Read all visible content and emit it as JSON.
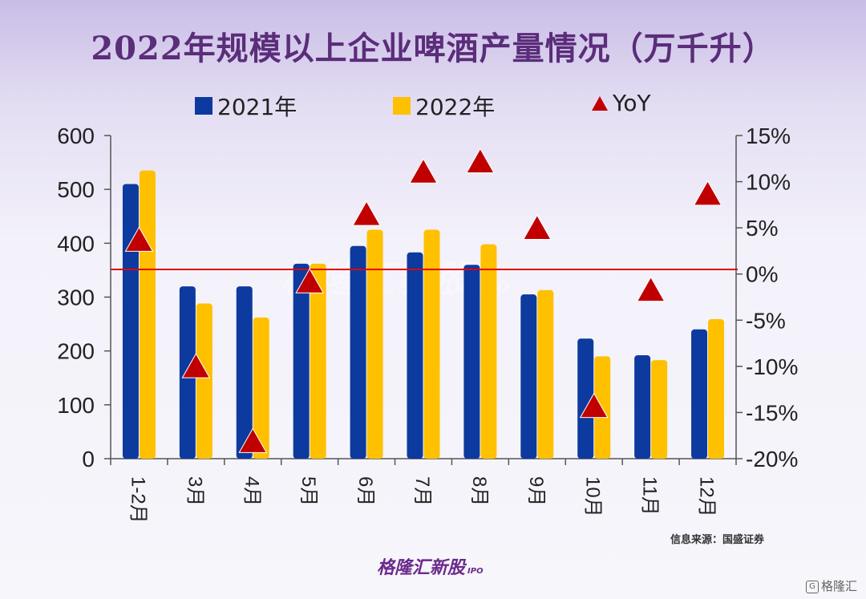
{
  "title": "2022年规模以上企业啤酒产量情况（万千升）",
  "legend": {
    "s2021": "2021年",
    "s2022": "2022年",
    "yoy": "YoY"
  },
  "source": "信息来源：国盛证券",
  "watermark": {
    "text": "格隆汇新股",
    "sub": "IPO"
  },
  "logo": {
    "text": "格隆汇新股",
    "sub": "IPO"
  },
  "corner_logo": {
    "mark": "G",
    "text": "格隆汇"
  },
  "colors": {
    "s2021": "#0d3a9e",
    "s2022": "#ffc000",
    "yoy": "#c00000",
    "title": "#5b2d7a"
  },
  "chart_data": {
    "type": "bar",
    "categories": [
      "1-2月",
      "3月",
      "4月",
      "5月",
      "6月",
      "7月",
      "8月",
      "9月",
      "10月",
      "11月",
      "12月"
    ],
    "series": [
      {
        "name": "2021年",
        "type": "bar",
        "values": [
          510,
          320,
          320,
          362,
          395,
          383,
          360,
          305,
          223,
          192,
          240
        ]
      },
      {
        "name": "2022年",
        "type": "bar",
        "values": [
          535,
          288,
          262,
          362,
          425,
          425,
          398,
          313,
          190,
          183,
          259
        ]
      },
      {
        "name": "YoY",
        "type": "scatter",
        "axis": "right",
        "values": [
          3.5,
          -10.2,
          -18.3,
          -1.0,
          6.3,
          10.9,
          12.0,
          4.8,
          -14.5,
          -1.9,
          8.5
        ]
      }
    ],
    "yticks_left": [
      "0",
      "100",
      "200",
      "300",
      "400",
      "500",
      "600"
    ],
    "yticks_right": [
      "15%",
      "10%",
      "5%",
      "0%",
      "-5%",
      "-10%",
      "-15%",
      "-20%"
    ],
    "ylim_left": [
      0,
      600
    ],
    "ylim_right": [
      -20,
      15
    ],
    "reference_line": {
      "axis": "right",
      "value": 0.5,
      "color": "#e00000"
    },
    "grid": false,
    "legend_position": "top"
  }
}
